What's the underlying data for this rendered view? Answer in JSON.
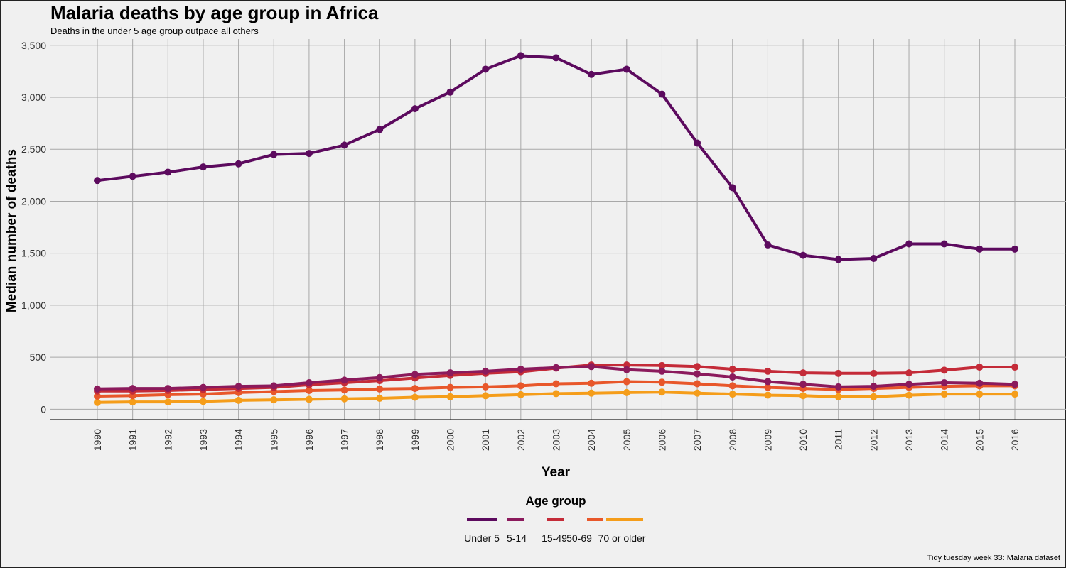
{
  "title": "Malaria deaths by age group in Africa",
  "subtitle": "Deaths in the under 5 age group outpace all others",
  "caption": "Tidy tuesday week 33: Malaria dataset",
  "chart_data": {
    "type": "line",
    "title": "Malaria deaths by age group in Africa",
    "subtitle": "Deaths in the under 5 age group outpace all others",
    "xlabel": "Year",
    "ylabel": "Median number of deaths",
    "ylim": [
      -100,
      3560
    ],
    "yticks": [
      0,
      500,
      1000,
      1500,
      2000,
      2500,
      3000,
      3500
    ],
    "ytick_labels": [
      "0",
      "500",
      "1,000",
      "1,500",
      "2,000",
      "2,500",
      "3,000",
      "3,500"
    ],
    "x": [
      "1990",
      "1991",
      "1992",
      "1993",
      "1994",
      "1995",
      "1996",
      "1997",
      "1998",
      "1999",
      "2000",
      "2001",
      "2002",
      "2003",
      "2004",
      "2005",
      "2006",
      "2007",
      "2008",
      "2009",
      "2010",
      "2011",
      "2012",
      "2013",
      "2014",
      "2015",
      "2016"
    ],
    "grid": true,
    "legend_title": "Age group",
    "legend_position": "bottom",
    "series": [
      {
        "name": "Under 5",
        "color": "#5c0a5e",
        "values": [
          2200,
          2240,
          2280,
          2330,
          2360,
          2450,
          2460,
          2540,
          2690,
          2890,
          3050,
          3270,
          3400,
          3380,
          3220,
          3270,
          3030,
          2560,
          2130,
          1580,
          1480,
          1440,
          1450,
          1590,
          1590,
          1540,
          1540
        ]
      },
      {
        "name": "5-14",
        "color": "#8b1a5c",
        "values": [
          195,
          200,
          200,
          210,
          220,
          225,
          255,
          280,
          305,
          335,
          350,
          365,
          385,
          400,
          410,
          380,
          365,
          340,
          310,
          265,
          240,
          215,
          220,
          240,
          255,
          250,
          240
        ]
      },
      {
        "name": "15-49",
        "color": "#c42b38",
        "values": [
          175,
          175,
          180,
          190,
          200,
          210,
          235,
          255,
          275,
          300,
          325,
          345,
          360,
          395,
          425,
          425,
          420,
          410,
          385,
          365,
          350,
          345,
          345,
          350,
          375,
          405,
          405
        ]
      },
      {
        "name": "50-69",
        "color": "#e8572a",
        "values": [
          125,
          130,
          140,
          145,
          160,
          170,
          180,
          185,
          195,
          200,
          210,
          215,
          225,
          245,
          250,
          265,
          260,
          245,
          225,
          210,
          200,
          190,
          200,
          210,
          220,
          225,
          225
        ]
      },
      {
        "name": "70 or older",
        "color": "#f59d1a",
        "values": [
          65,
          70,
          70,
          75,
          85,
          90,
          95,
          100,
          105,
          115,
          120,
          130,
          140,
          150,
          155,
          160,
          165,
          155,
          145,
          135,
          130,
          120,
          120,
          135,
          145,
          145,
          145
        ]
      }
    ]
  }
}
